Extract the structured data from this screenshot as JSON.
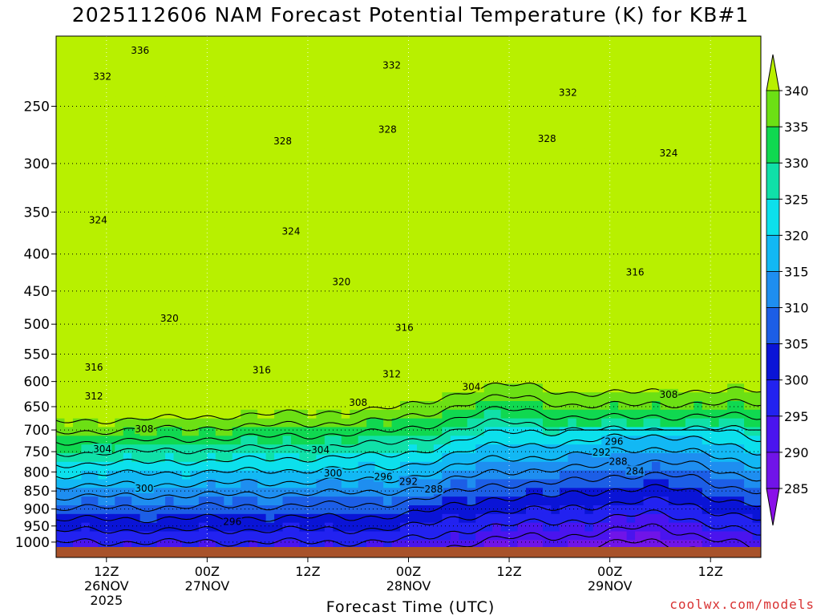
{
  "title": "2025112606 NAM Forecast Potential Temperature (K) for KB#1",
  "watermark": "coolwx.com/models",
  "chart_data": {
    "type": "heatmap",
    "title": "2025112606 NAM Forecast Potential Temperature (K) for KB#1",
    "xlabel": "Forecast Time (UTC)",
    "ylabel": "",
    "y_scale": "log-pressure",
    "y_ticks": [
      250,
      300,
      350,
      400,
      450,
      500,
      550,
      600,
      650,
      700,
      750,
      800,
      850,
      900,
      950,
      1000
    ],
    "y_tick_labels": [
      "250",
      "300",
      "350",
      "400",
      "450",
      "500",
      "550",
      "600",
      "650",
      "700",
      "750",
      "800",
      "850",
      "900",
      "950",
      "1000"
    ],
    "x_ticks": [
      {
        "hour": 6,
        "lines": [
          "12Z",
          "26NOV",
          "2025"
        ]
      },
      {
        "hour": 18,
        "lines": [
          "00Z",
          "27NOV"
        ]
      },
      {
        "hour": 30,
        "lines": [
          "12Z"
        ]
      },
      {
        "hour": 42,
        "lines": [
          "00Z",
          "28NOV"
        ]
      },
      {
        "hour": 54,
        "lines": [
          "12Z"
        ]
      },
      {
        "hour": 66,
        "lines": [
          "00Z",
          "29NOV"
        ]
      },
      {
        "hour": 78,
        "lines": [
          "12Z"
        ]
      }
    ],
    "x_range_hours": [
      0,
      84
    ],
    "y_range_hPa": [
      200,
      1050
    ],
    "grid": true,
    "colorbar": {
      "levels": [
        285,
        290,
        295,
        300,
        305,
        310,
        315,
        320,
        325,
        330,
        335,
        340
      ],
      "labels": [
        "285",
        "290",
        "295",
        "300",
        "305",
        "310",
        "315",
        "320",
        "325",
        "330",
        "335",
        "340"
      ],
      "colors": [
        "#8a10e8",
        "#7014e8",
        "#4a14ee",
        "#2222f0",
        "#0a14d6",
        "#1c5ee6",
        "#1e8ef0",
        "#12b8f4",
        "#0ce0ec",
        "#10e0a8",
        "#10d850",
        "#6ce014",
        "#b8f000"
      ]
    },
    "contour_interval_K": 4,
    "isentrope_labels": [
      {
        "value": 336,
        "hour": 10,
        "hPa": 210
      },
      {
        "value": 332,
        "hour": 5.5,
        "hPa": 228
      },
      {
        "value": 332,
        "hour": 40,
        "hPa": 220
      },
      {
        "value": 332,
        "hour": 61,
        "hPa": 240
      },
      {
        "value": 328,
        "hour": 27,
        "hPa": 280
      },
      {
        "value": 328,
        "hour": 39.5,
        "hPa": 270
      },
      {
        "value": 328,
        "hour": 58.5,
        "hPa": 278
      },
      {
        "value": 324,
        "hour": 73,
        "hPa": 291
      },
      {
        "value": 324,
        "hour": 5,
        "hPa": 360
      },
      {
        "value": 324,
        "hour": 28,
        "hPa": 373
      },
      {
        "value": 320,
        "hour": 34,
        "hPa": 438
      },
      {
        "value": 320,
        "hour": 13.5,
        "hPa": 492
      },
      {
        "value": 316,
        "hour": 69,
        "hPa": 425
      },
      {
        "value": 316,
        "hour": 41.5,
        "hPa": 507
      },
      {
        "value": 316,
        "hour": 4.5,
        "hPa": 575
      },
      {
        "value": 316,
        "hour": 24.5,
        "hPa": 580
      },
      {
        "value": 312,
        "hour": 40,
        "hPa": 588
      },
      {
        "value": 312,
        "hour": 4.5,
        "hPa": 630
      },
      {
        "value": 308,
        "hour": 73,
        "hPa": 627
      },
      {
        "value": 308,
        "hour": 36,
        "hPa": 643
      },
      {
        "value": 308,
        "hour": 10.5,
        "hPa": 700
      },
      {
        "value": 304,
        "hour": 49.5,
        "hPa": 612
      },
      {
        "value": 304,
        "hour": 5.5,
        "hPa": 746
      },
      {
        "value": 304,
        "hour": 31.5,
        "hPa": 748
      },
      {
        "value": 300,
        "hour": 33,
        "hPa": 805
      },
      {
        "value": 300,
        "hour": 10.5,
        "hPa": 845
      },
      {
        "value": 296,
        "hour": 66.5,
        "hPa": 728
      },
      {
        "value": 296,
        "hour": 39,
        "hPa": 815
      },
      {
        "value": 296,
        "hour": 21,
        "hPa": 940
      },
      {
        "value": 292,
        "hour": 65,
        "hPa": 754
      },
      {
        "value": 292,
        "hour": 42,
        "hPa": 827
      },
      {
        "value": 288,
        "hour": 67,
        "hPa": 776
      },
      {
        "value": 288,
        "hour": 45,
        "hPa": 848
      },
      {
        "value": 284,
        "hour": 69,
        "hPa": 800
      }
    ]
  },
  "labels": {
    "xlabel": "Forecast Time (UTC)"
  },
  "colors": {
    "terrain": "#a8522a",
    "contour": "#000000",
    "grid": "#000000"
  }
}
